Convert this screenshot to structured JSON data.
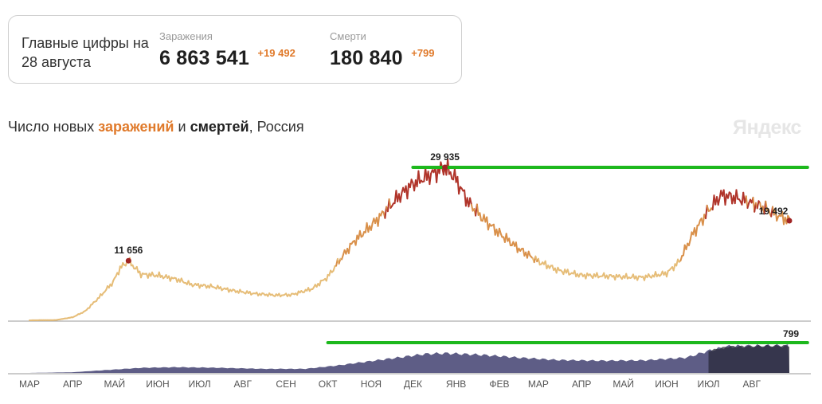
{
  "summary": {
    "title": "Главные цифры на 28 августа",
    "infections": {
      "label": "Заражения",
      "value": "6 863 541",
      "delta": "+19 492"
    },
    "deaths": {
      "label": "Смерти",
      "value": "180 840",
      "delta": "+799"
    }
  },
  "heading": {
    "prefix": "Число новых ",
    "infections_word": "заражений",
    "middle": " и ",
    "deaths_word": "смертей",
    "suffix": ", Россия"
  },
  "watermark": "Яндекс",
  "colors": {
    "line_low": "#e6bd78",
    "line_mid": "#d9904a",
    "line_high": "#b0342a",
    "area_fill": "#5e5d86",
    "area_fill_high": "#2a2a3a",
    "marker": "#a02424",
    "annotation": "#1db81d",
    "accent": "#e07a2b"
  },
  "chart_data": [
    {
      "type": "line",
      "series": [
        {
          "name": "заражений",
          "points": [
            [
              "2020-03-01",
              2
            ],
            [
              "2020-03-20",
              60
            ],
            [
              "2020-04-01",
              600
            ],
            [
              "2020-04-10",
              1800
            ],
            [
              "2020-04-20",
              4500
            ],
            [
              "2020-04-30",
              7500
            ],
            [
              "2020-05-05",
              10200
            ],
            [
              "2020-05-11",
              11656
            ],
            [
              "2020-05-20",
              9000
            ],
            [
              "2020-06-01",
              8800
            ],
            [
              "2020-06-15",
              8000
            ],
            [
              "2020-06-25",
              7000
            ],
            [
              "2020-07-10",
              6600
            ],
            [
              "2020-07-25",
              5800
            ],
            [
              "2020-08-10",
              5200
            ],
            [
              "2020-08-25",
              4900
            ],
            [
              "2020-09-05",
              5000
            ],
            [
              "2020-09-20",
              6200
            ],
            [
              "2020-10-01",
              8500
            ],
            [
              "2020-10-10",
              12000
            ],
            [
              "2020-10-20",
              15500
            ],
            [
              "2020-11-01",
              18500
            ],
            [
              "2020-11-10",
              21000
            ],
            [
              "2020-11-20",
              24000
            ],
            [
              "2020-11-30",
              26500
            ],
            [
              "2020-12-10",
              28000
            ],
            [
              "2020-12-24",
              29935
            ],
            [
              "2020-12-31",
              28000
            ],
            [
              "2021-01-10",
              23000
            ],
            [
              "2021-01-20",
              20000
            ],
            [
              "2021-02-01",
              17000
            ],
            [
              "2021-02-15",
              14000
            ],
            [
              "2021-03-01",
              11500
            ],
            [
              "2021-03-15",
              9800
            ],
            [
              "2021-04-01",
              8800
            ],
            [
              "2021-04-15",
              8700
            ],
            [
              "2021-05-01",
              8500
            ],
            [
              "2021-05-15",
              8400
            ],
            [
              "2021-06-01",
              9200
            ],
            [
              "2021-06-10",
              11500
            ],
            [
              "2021-06-20",
              17000
            ],
            [
              "2021-07-01",
              21500
            ],
            [
              "2021-07-10",
              24500
            ],
            [
              "2021-07-20",
              24000
            ],
            [
              "2021-07-30",
              23200
            ],
            [
              "2021-08-10",
              22000
            ],
            [
              "2021-08-20",
              20500
            ],
            [
              "2021-08-28",
              19492
            ]
          ]
        }
      ],
      "peak_labels": [
        {
          "x": "2020-05-11",
          "y": 11656,
          "text": "11 656"
        },
        {
          "x": "2020-12-24",
          "y": 29935,
          "text": "29 935"
        },
        {
          "x": "2021-08-28",
          "y": 19492,
          "text": "19 492"
        }
      ]
    },
    {
      "type": "area",
      "series": [
        {
          "name": "смертей",
          "points": [
            [
              "2020-03-01",
              0
            ],
            [
              "2020-04-01",
              20
            ],
            [
              "2020-05-01",
              100
            ],
            [
              "2020-05-20",
              150
            ],
            [
              "2020-06-15",
              170
            ],
            [
              "2020-07-15",
              150
            ],
            [
              "2020-08-15",
              120
            ],
            [
              "2020-09-15",
              120
            ],
            [
              "2020-10-10",
              230
            ],
            [
              "2020-11-01",
              350
            ],
            [
              "2020-11-20",
              450
            ],
            [
              "2020-12-10",
              560
            ],
            [
              "2020-12-25",
              580
            ],
            [
              "2021-01-20",
              530
            ],
            [
              "2021-02-15",
              450
            ],
            [
              "2021-03-15",
              380
            ],
            [
              "2021-04-15",
              360
            ],
            [
              "2021-05-15",
              370
            ],
            [
              "2021-06-15",
              450
            ],
            [
              "2021-07-01",
              650
            ],
            [
              "2021-07-15",
              780
            ],
            [
              "2021-08-01",
              790
            ],
            [
              "2021-08-15",
              800
            ],
            [
              "2021-08-28",
              799
            ]
          ]
        }
      ],
      "peak_labels": [
        {
          "x": "2021-08-28",
          "y": 799,
          "text": "799"
        }
      ]
    }
  ],
  "x_axis": {
    "ticks": [
      [
        "2020-03-01",
        "МАР"
      ],
      [
        "2020-04-01",
        "АПР"
      ],
      [
        "2020-05-01",
        "МАЙ"
      ],
      [
        "2020-06-01",
        "ИЮН"
      ],
      [
        "2020-07-01",
        "ИЮЛ"
      ],
      [
        "2020-08-01",
        "АВГ"
      ],
      [
        "2020-09-01",
        "СЕН"
      ],
      [
        "2020-10-01",
        "ОКТ"
      ],
      [
        "2020-11-01",
        "НОЯ"
      ],
      [
        "2020-12-01",
        "ДЕК"
      ],
      [
        "2021-01-01",
        "ЯНВ"
      ],
      [
        "2021-02-01",
        "ФЕВ"
      ],
      [
        "2021-03-01",
        "МАР"
      ],
      [
        "2021-04-01",
        "АПР"
      ],
      [
        "2021-05-01",
        "МАЙ"
      ],
      [
        "2021-06-01",
        "ИЮН"
      ],
      [
        "2021-07-01",
        "ИЮЛ"
      ],
      [
        "2021-08-01",
        "АВГ"
      ]
    ]
  },
  "annotations": [
    {
      "chart": 0,
      "y": 29935,
      "x_from": "2020-12-01",
      "x_to": "2021-09-10"
    },
    {
      "chart": 1,
      "y": 799,
      "x_from": "2020-10-01",
      "x_to": "2021-09-10"
    }
  ]
}
